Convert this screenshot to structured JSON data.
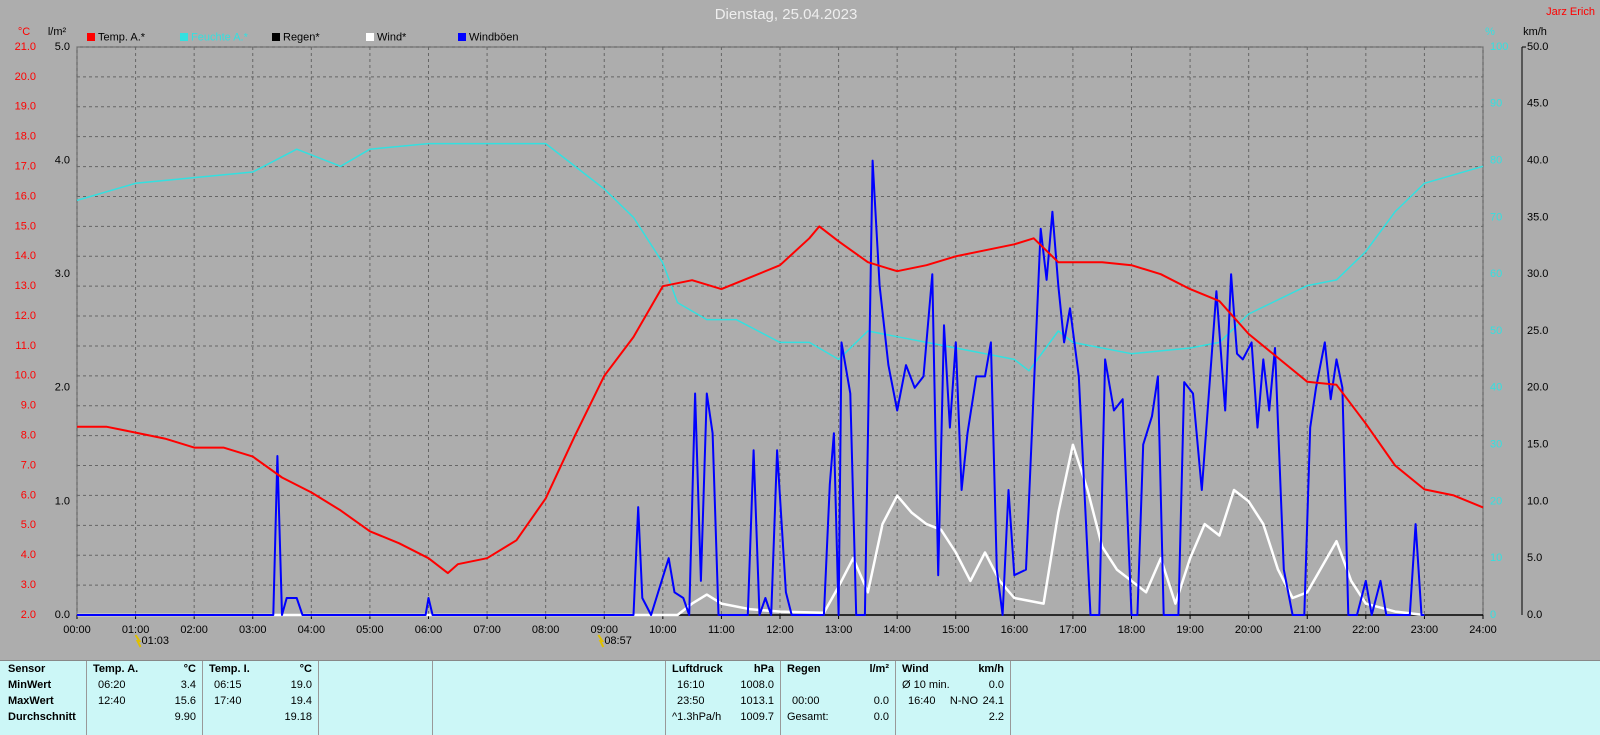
{
  "chart_data": {
    "type": "line",
    "title": "Dienstag, 25.04.2023",
    "author": "Jarz Erich",
    "xlim": [
      0,
      24
    ],
    "xticks": [
      {
        "value": 0,
        "label": "00:00"
      },
      {
        "value": 1,
        "label": "01:00"
      },
      {
        "value": 2,
        "label": "02:00"
      },
      {
        "value": 3,
        "label": "03:00"
      },
      {
        "value": 4,
        "label": "04:00"
      },
      {
        "value": 5,
        "label": "05:00"
      },
      {
        "value": 6,
        "label": "06:00"
      },
      {
        "value": 7,
        "label": "07:00"
      },
      {
        "value": 8,
        "label": "08:00"
      },
      {
        "value": 9,
        "label": "09:00"
      },
      {
        "value": 10,
        "label": "10:00"
      },
      {
        "value": 11,
        "label": "11:00"
      },
      {
        "value": 12,
        "label": "12:00"
      },
      {
        "value": 13,
        "label": "13:00"
      },
      {
        "value": 14,
        "label": "14:00"
      },
      {
        "value": 15,
        "label": "15:00"
      },
      {
        "value": 16,
        "label": "16:00"
      },
      {
        "value": 17,
        "label": "17:00"
      },
      {
        "value": 18,
        "label": "18:00"
      },
      {
        "value": 19,
        "label": "19:00"
      },
      {
        "value": 20,
        "label": "20:00"
      },
      {
        "value": 21,
        "label": "21:00"
      },
      {
        "value": 22,
        "label": "22:00"
      },
      {
        "value": 23,
        "label": "23:00"
      },
      {
        "value": 24,
        "label": "24:00"
      }
    ],
    "grid": true,
    "axes": {
      "temp": {
        "label": "°C",
        "color": "#ff0000",
        "side": "left",
        "grid": true,
        "lim": [
          2,
          21
        ],
        "ticks": [
          {
            "value": 2,
            "label": "2.0"
          },
          {
            "value": 3,
            "label": "3.0"
          },
          {
            "value": 4,
            "label": "4.0"
          },
          {
            "value": 5,
            "label": "5.0"
          },
          {
            "value": 6,
            "label": "6.0"
          },
          {
            "value": 7,
            "label": "7.0"
          },
          {
            "value": 8,
            "label": "8.0"
          },
          {
            "value": 9,
            "label": "9.0"
          },
          {
            "value": 10,
            "label": "10.0"
          },
          {
            "value": 11,
            "label": "11.0"
          },
          {
            "value": 12,
            "label": "12.0"
          },
          {
            "value": 13,
            "label": "13.0"
          },
          {
            "value": 14,
            "label": "14.0"
          },
          {
            "value": 15,
            "label": "15.0"
          },
          {
            "value": 16,
            "label": "16.0"
          },
          {
            "value": 17,
            "label": "17.0"
          },
          {
            "value": 18,
            "label": "18.0"
          },
          {
            "value": 19,
            "label": "19.0"
          },
          {
            "value": 20,
            "label": "20.0"
          },
          {
            "value": 21,
            "label": "21.0"
          }
        ]
      },
      "rain": {
        "label": "l/m²",
        "color": "#000000",
        "side": "left",
        "grid": false,
        "lim": [
          0,
          5
        ],
        "ticks": [
          {
            "value": 0,
            "label": "0.0"
          },
          {
            "value": 1,
            "label": "1.0"
          },
          {
            "value": 2,
            "label": "2.0"
          },
          {
            "value": 3,
            "label": "3.0"
          },
          {
            "value": 4,
            "label": "4.0"
          },
          {
            "value": 5,
            "label": "5.0"
          }
        ]
      },
      "hum": {
        "label": "%",
        "color": "#33e0e0",
        "side": "right",
        "grid": false,
        "lim": [
          0,
          100
        ],
        "ticks": [
          0,
          10,
          20,
          30,
          40,
          50,
          60,
          70,
          80,
          90,
          100
        ]
      },
      "wind": {
        "label": "km/h",
        "color": "#000000",
        "side": "right",
        "grid": false,
        "lim": [
          0,
          50
        ],
        "ticks": [
          {
            "value": 0,
            "label": "0.0"
          },
          {
            "value": 5,
            "label": "5.0"
          },
          {
            "value": 10,
            "label": "10.0"
          },
          {
            "value": 15,
            "label": "15.0"
          },
          {
            "value": 20,
            "label": "20.0"
          },
          {
            "value": 25,
            "label": "25.0"
          },
          {
            "value": 30,
            "label": "30.0"
          },
          {
            "value": 35,
            "label": "35.0"
          },
          {
            "value": 40,
            "label": "40.0"
          },
          {
            "value": 45,
            "label": "45.0"
          },
          {
            "value": 50,
            "label": "50.0"
          }
        ]
      }
    },
    "series": [
      {
        "name": "Temp. A.*",
        "color": "#ff0000",
        "axis": "temp",
        "x": [
          0,
          0.5,
          1,
          1.5,
          2,
          2.5,
          3,
          3.5,
          4,
          4.5,
          5,
          5.5,
          6,
          6.33,
          6.5,
          7,
          7.5,
          8,
          8.5,
          9,
          9.5,
          10,
          10.5,
          11,
          11.5,
          12,
          12.5,
          12.67,
          13,
          13.5,
          14,
          14.5,
          15,
          15.5,
          16,
          16.33,
          16.75,
          17,
          17.5,
          18,
          18.5,
          19,
          19.5,
          20,
          20.5,
          21,
          21.5,
          22,
          22.5,
          23,
          23.5,
          24
        ],
        "values": [
          8.3,
          8.3,
          8.1,
          7.9,
          7.6,
          7.6,
          7.3,
          6.6,
          6.1,
          5.5,
          4.8,
          4.4,
          3.9,
          3.4,
          3.7,
          3.9,
          4.5,
          5.9,
          8.0,
          10.0,
          11.3,
          13.0,
          13.2,
          12.9,
          13.3,
          13.7,
          14.6,
          15.0,
          14.5,
          13.8,
          13.5,
          13.7,
          14.0,
          14.2,
          14.4,
          14.6,
          13.8,
          13.8,
          13.8,
          13.7,
          13.4,
          12.9,
          12.5,
          11.4,
          10.6,
          9.8,
          9.7,
          8.4,
          7.0,
          6.2,
          6.0,
          5.6
        ]
      },
      {
        "name": "Feuchte A.*",
        "color": "#33e0e0",
        "axis": "hum",
        "x": [
          0,
          1,
          2,
          3,
          3.75,
          4.5,
          5,
          6,
          7,
          8,
          9,
          9.5,
          10,
          10.25,
          10.75,
          11.25,
          12,
          12.5,
          13,
          13.5,
          14,
          15,
          16,
          16.25,
          16.75,
          17,
          18,
          19,
          19.5,
          20,
          21,
          21.5,
          22,
          22.5,
          23,
          24
        ],
        "values": [
          73,
          76,
          77,
          78,
          82,
          79,
          82,
          83,
          83,
          83,
          75,
          70,
          62,
          55,
          52,
          52,
          48,
          48,
          45,
          50,
          49,
          47,
          45,
          43,
          50,
          48,
          46,
          47,
          48,
          53,
          58,
          59,
          64,
          71,
          76,
          79
        ]
      },
      {
        "name": "Regen*",
        "color": "#000000",
        "axis": "rain",
        "x": [
          0,
          24
        ],
        "values": [
          0,
          0
        ]
      },
      {
        "name": "Wind*",
        "color": "#ffffff",
        "axis": "wind",
        "x": [
          0,
          10.25,
          10.5,
          10.75,
          11,
          11.5,
          12,
          12.75,
          13,
          13.25,
          13.5,
          13.75,
          14,
          14.25,
          14.5,
          14.75,
          15,
          15.25,
          15.5,
          15.75,
          16,
          16.5,
          16.75,
          17,
          17.25,
          17.5,
          17.75,
          18,
          18.25,
          18.5,
          18.75,
          19,
          19.25,
          19.5,
          19.75,
          20,
          20.25,
          20.5,
          20.75,
          21,
          21.5,
          21.75,
          22,
          22.5,
          23
        ],
        "values": [
          0,
          0,
          1.0,
          1.8,
          1.0,
          0.5,
          0.3,
          0.2,
          2.5,
          5.0,
          2.0,
          8.0,
          10.5,
          9.0,
          8.0,
          7.5,
          5.5,
          3.0,
          5.5,
          3.0,
          1.5,
          1.0,
          9.0,
          15.0,
          11.0,
          6.0,
          4.0,
          3.0,
          2.0,
          5.0,
          1.0,
          5.0,
          8.0,
          7.0,
          11.0,
          10.0,
          8.0,
          4.0,
          1.5,
          2.0,
          6.5,
          3.0,
          1.0,
          0.3,
          0
        ]
      },
      {
        "name": "Windböen",
        "color": "#0000ff",
        "axis": "wind",
        "x": [
          0,
          3.35,
          3.42,
          3.5,
          3.58,
          3.75,
          3.85,
          5.95,
          6.0,
          6.07,
          9.5,
          9.58,
          9.65,
          9.8,
          10.1,
          10.2,
          10.35,
          10.45,
          10.55,
          10.65,
          10.75,
          10.85,
          10.95,
          11.45,
          11.55,
          11.65,
          11.75,
          11.85,
          11.95,
          12.1,
          12.2,
          12.75,
          12.85,
          12.92,
          13.0,
          13.05,
          13.2,
          13.3,
          13.45,
          13.58,
          13.7,
          13.85,
          14.0,
          14.15,
          14.3,
          14.45,
          14.6,
          14.7,
          14.8,
          14.9,
          15.0,
          15.1,
          15.2,
          15.35,
          15.5,
          15.6,
          15.7,
          15.8,
          15.9,
          16.0,
          16.2,
          16.45,
          16.55,
          16.65,
          16.75,
          16.85,
          16.95,
          17.1,
          17.3,
          17.45,
          17.55,
          17.7,
          17.85,
          18.0,
          18.1,
          18.2,
          18.35,
          18.45,
          18.55,
          18.8,
          18.9,
          19.05,
          19.2,
          19.45,
          19.6,
          19.7,
          19.8,
          19.9,
          20.05,
          20.15,
          20.25,
          20.35,
          20.45,
          20.6,
          20.75,
          20.95,
          21.05,
          21.15,
          21.3,
          21.4,
          21.5,
          21.6,
          21.7,
          21.85,
          22.0,
          22.1,
          22.25,
          22.35,
          22.75,
          22.85,
          22.95,
          23.0
        ],
        "values": [
          0,
          0,
          14.0,
          0,
          1.5,
          1.5,
          0,
          0,
          1.5,
          0,
          0,
          9.5,
          1.5,
          0,
          5.0,
          2.0,
          1.5,
          0,
          19.5,
          3.0,
          19.5,
          16.0,
          0,
          0,
          14.5,
          0,
          1.5,
          0,
          14.5,
          2.0,
          0,
          0,
          11.5,
          16.0,
          0,
          24.0,
          19.5,
          0,
          0,
          40.0,
          29.0,
          22.0,
          18.0,
          22.0,
          20.0,
          21.0,
          30.0,
          3.5,
          25.5,
          16.5,
          24.0,
          11.0,
          16.0,
          21.0,
          21.0,
          24.0,
          4.0,
          0,
          11.0,
          3.5,
          4.0,
          34.0,
          29.5,
          35.5,
          29.0,
          24.0,
          27.0,
          21.0,
          0,
          0,
          22.5,
          18.0,
          19.0,
          0,
          0,
          15.0,
          17.5,
          21.0,
          0,
          0,
          20.5,
          19.5,
          11.0,
          28.5,
          18.0,
          30.0,
          23.0,
          22.5,
          24.0,
          16.5,
          22.5,
          18.0,
          23.5,
          4.0,
          0,
          0,
          16.5,
          20.0,
          24.0,
          19.0,
          22.5,
          20.0,
          0,
          0,
          3.0,
          0,
          3.0,
          0,
          0,
          8.0,
          0,
          0
        ]
      }
    ],
    "annotations": [
      {
        "x": 1.05,
        "label": "01:03"
      },
      {
        "x": 8.95,
        "label": "08:57"
      }
    ]
  },
  "stats": {
    "title": "Sensor",
    "labels": [
      "MinWert",
      "MaxWert",
      "Durchschnitt"
    ],
    "panels": [
      {
        "name": "Temp. A.",
        "unit": "°C",
        "min": {
          "time": "06:20",
          "value": "3.4"
        },
        "max": {
          "time": "12:40",
          "value": "15.6"
        },
        "avg": {
          "value": "9.90"
        }
      },
      {
        "name": "Temp. I.",
        "unit": "°C",
        "min": {
          "time": "06:15",
          "value": "19.0"
        },
        "max": {
          "time": "17:40",
          "value": "19.4"
        },
        "avg": {
          "value": "19.18"
        }
      },
      {
        "name": "Luftdruck",
        "unit": "hPa",
        "min": {
          "time": "16:10",
          "value": "1008.0"
        },
        "max": {
          "time": "23:50",
          "value": "1013.1"
        },
        "avg": {
          "time": "^1.3hPa/h",
          "value": "1009.7"
        }
      },
      {
        "name": "Regen",
        "unit": "l/m²",
        "max": {
          "time": "00:00",
          "value": "0.0"
        },
        "avg": {
          "time": "Gesamt:",
          "value": "0.0"
        }
      },
      {
        "name": "Wind",
        "unit": "km/h",
        "min": {
          "time": "Ø 10 min.",
          "value": "0.0"
        },
        "max": {
          "time": "16:40",
          "dir": "N-NO",
          "value": "24.1"
        },
        "avg": {
          "value": "2.2"
        }
      }
    ]
  }
}
